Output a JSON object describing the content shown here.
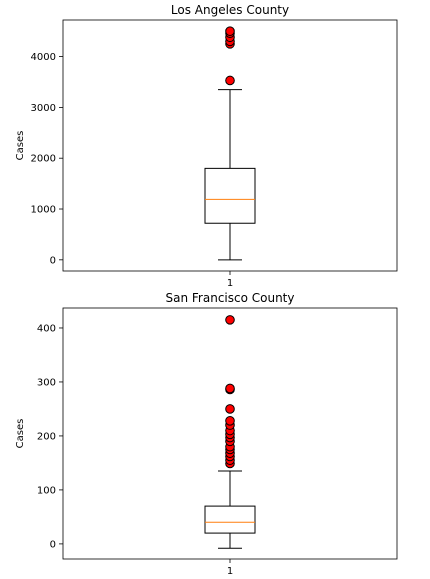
{
  "chart_data": [
    {
      "type": "box",
      "title": "Los Angeles County",
      "ylabel": "Cases",
      "xlabel": "",
      "categories": [
        "1"
      ],
      "yticks": [
        0,
        1000,
        2000,
        3000,
        4000
      ],
      "ylim": [
        -220,
        4720
      ],
      "box": {
        "whisker_low": 0,
        "q1": 720,
        "median": 1190,
        "q3": 1800,
        "whisker_high": 3350
      },
      "outliers": [
        3530,
        4250,
        4300,
        4380,
        4460,
        4500
      ],
      "colors": {
        "median": "#ff7f0e",
        "outlier": "#ff0000",
        "outline": "#000000"
      }
    },
    {
      "type": "box",
      "title": "San Francisco County",
      "ylabel": "Cases",
      "xlabel": "",
      "categories": [
        "1"
      ],
      "yticks": [
        0,
        100,
        200,
        300,
        400
      ],
      "ylim": [
        -28,
        437
      ],
      "box": {
        "whisker_low": -8,
        "q1": 20,
        "median": 40,
        "q3": 70,
        "whisker_high": 135
      },
      "outliers": [
        149,
        155,
        162,
        168,
        175,
        180,
        190,
        197,
        203,
        210,
        220,
        228,
        250,
        286,
        288,
        415
      ],
      "colors": {
        "median": "#ff7f0e",
        "outlier": "#ff0000",
        "outline": "#000000"
      }
    }
  ]
}
